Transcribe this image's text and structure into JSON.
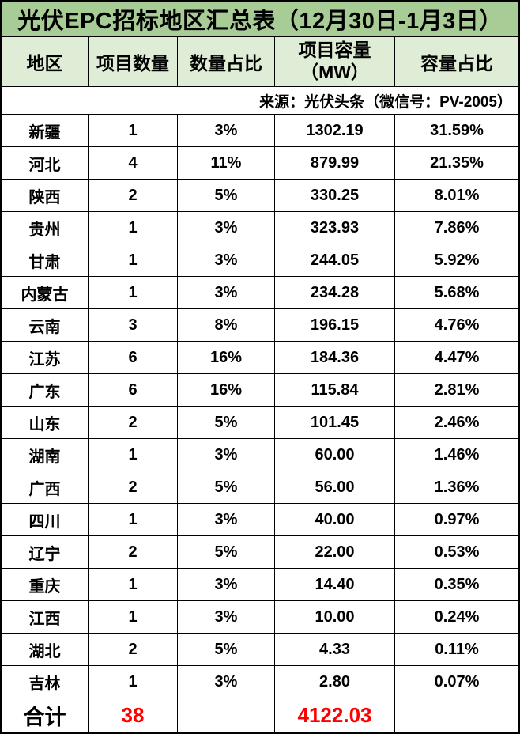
{
  "colors": {
    "title_bg": "#A8CC96",
    "header_bg": "#DFEDD6",
    "total_red": "#FF0000",
    "text": "#000000",
    "border": "#000000"
  },
  "header": {
    "capacity_line1": "项目容量",
    "capacity_line2": "（MW）"
  },
  "chart_data": {
    "type": "table",
    "title": "光伏EPC招标地区汇总表（12月30日-1月3日）",
    "source": "来源：光伏头条（微信号：PV-2005）",
    "columns": [
      "地区",
      "项目数量",
      "数量占比",
      "项目容量（MW）",
      "容量占比"
    ],
    "rows": [
      [
        "新疆",
        "1",
        "3%",
        "1302.19",
        "31.59%"
      ],
      [
        "河北",
        "4",
        "11%",
        "879.99",
        "21.35%"
      ],
      [
        "陕西",
        "2",
        "5%",
        "330.25",
        "8.01%"
      ],
      [
        "贵州",
        "1",
        "3%",
        "323.93",
        "7.86%"
      ],
      [
        "甘肃",
        "1",
        "3%",
        "244.05",
        "5.92%"
      ],
      [
        "内蒙古",
        "1",
        "3%",
        "234.28",
        "5.68%"
      ],
      [
        "云南",
        "3",
        "8%",
        "196.15",
        "4.76%"
      ],
      [
        "江苏",
        "6",
        "16%",
        "184.36",
        "4.47%"
      ],
      [
        "广东",
        "6",
        "16%",
        "115.84",
        "2.81%"
      ],
      [
        "山东",
        "2",
        "5%",
        "101.45",
        "2.46%"
      ],
      [
        "湖南",
        "1",
        "3%",
        "60.00",
        "1.46%"
      ],
      [
        "广西",
        "2",
        "5%",
        "56.00",
        "1.36%"
      ],
      [
        "四川",
        "1",
        "3%",
        "40.00",
        "0.97%"
      ],
      [
        "辽宁",
        "2",
        "5%",
        "22.00",
        "0.53%"
      ],
      [
        "重庆",
        "1",
        "3%",
        "14.40",
        "0.35%"
      ],
      [
        "江西",
        "1",
        "3%",
        "10.00",
        "0.24%"
      ],
      [
        "湖北",
        "2",
        "5%",
        "4.33",
        "0.11%"
      ],
      [
        "吉林",
        "1",
        "3%",
        "2.80",
        "0.07%"
      ]
    ],
    "total_row": [
      "合计",
      "38",
      "",
      "4122.03",
      ""
    ]
  }
}
